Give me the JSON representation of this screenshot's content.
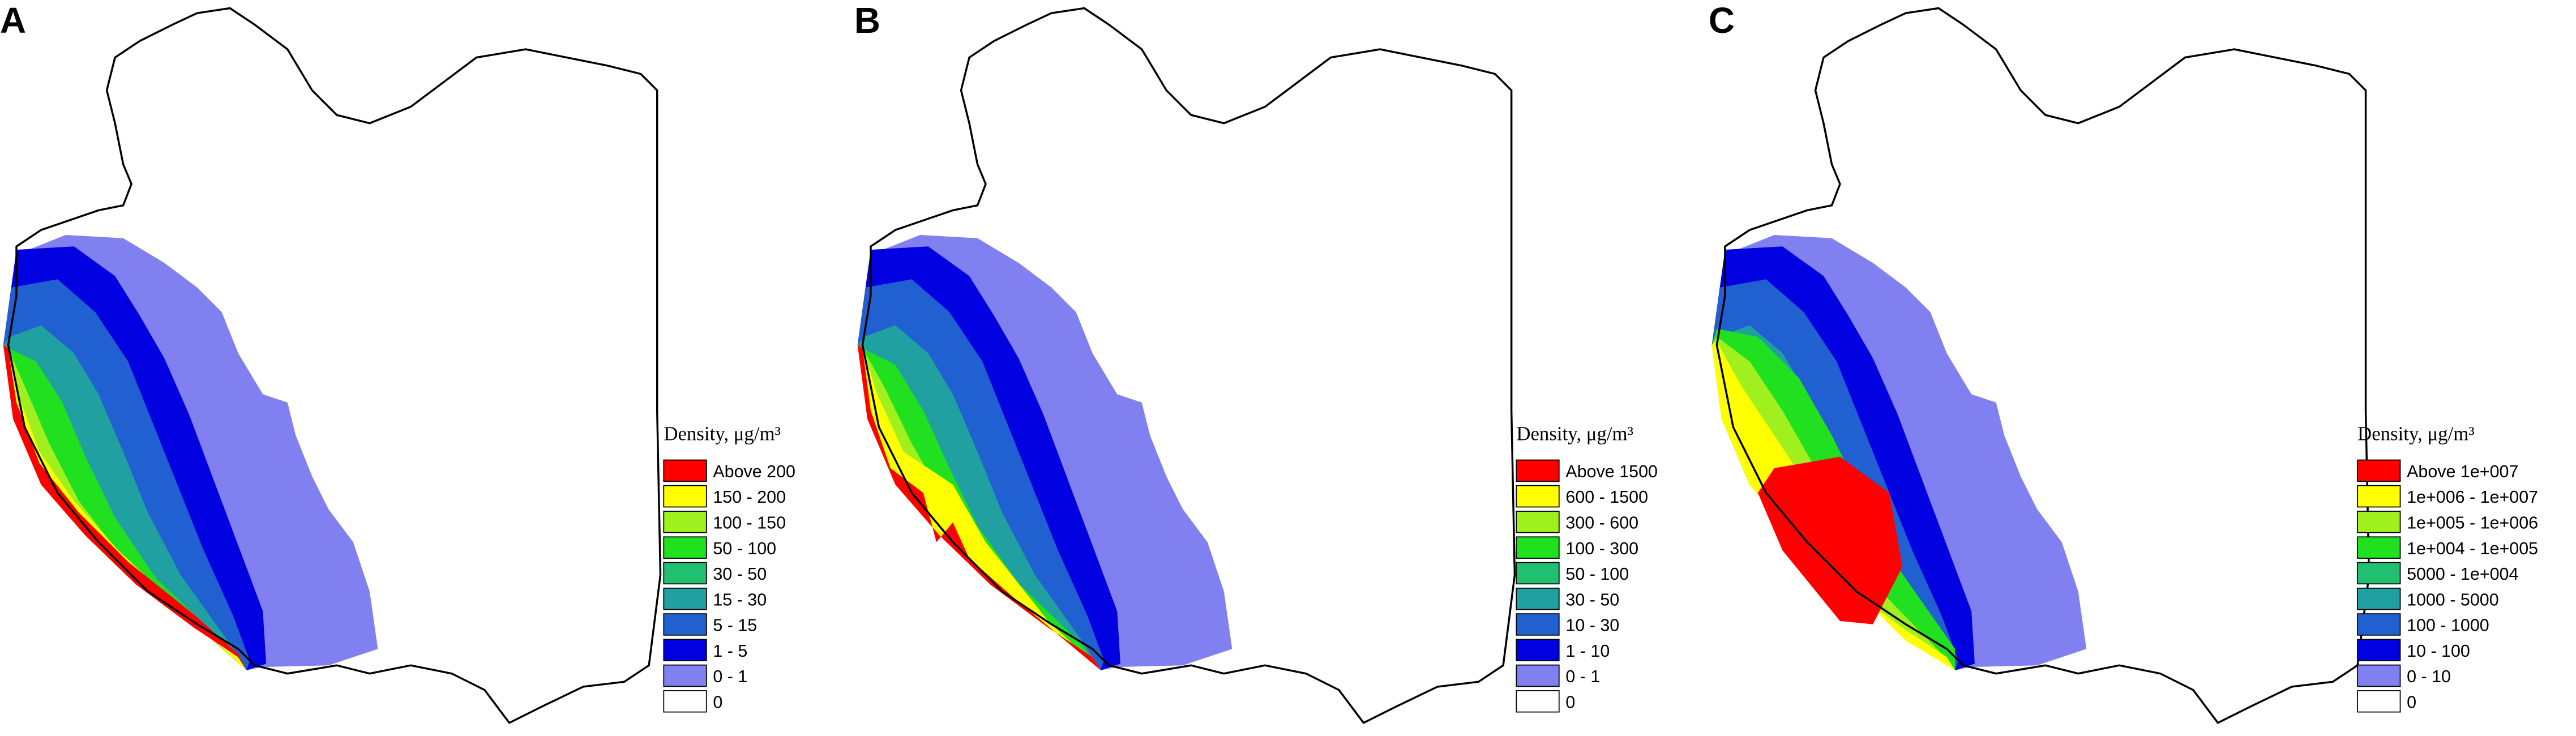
{
  "panels": [
    {
      "label": "A",
      "legend": {
        "title": "Density, μg/m³",
        "entries": [
          {
            "label": "Above  200",
            "color": "#ff0000"
          },
          {
            "label": "150 - 200",
            "color": "#ffff00"
          },
          {
            "label": "100 - 150",
            "color": "#a0f020"
          },
          {
            "label": "50 - 100",
            "color": "#20e020"
          },
          {
            "label": "30 -  50",
            "color": "#20c070"
          },
          {
            "label": "15 -  30",
            "color": "#20a0a0"
          },
          {
            "label": "5 -  15",
            "color": "#2060d0"
          },
          {
            "label": "1 -    5",
            "color": "#0000e0"
          },
          {
            "label": "0 -    1",
            "color": "#8080f0"
          },
          {
            "label": "0",
            "color": "#ffffff"
          }
        ]
      }
    },
    {
      "label": "B",
      "legend": {
        "title": "Density, μg/m³",
        "entries": [
          {
            "label": "Above  1500",
            "color": "#ff0000"
          },
          {
            "label": "600 - 1500",
            "color": "#ffff00"
          },
          {
            "label": "300 -  600",
            "color": "#a0f020"
          },
          {
            "label": "100 -  300",
            "color": "#20e020"
          },
          {
            "label": "50 -  100",
            "color": "#20c070"
          },
          {
            "label": "30 -    50",
            "color": "#20a0a0"
          },
          {
            "label": "10 -    30",
            "color": "#2060d0"
          },
          {
            "label": "1 -    10",
            "color": "#0000e0"
          },
          {
            "label": "0 -      1",
            "color": "#8080f0"
          },
          {
            "label": "0",
            "color": "#ffffff"
          }
        ]
      }
    },
    {
      "label": "C",
      "legend": {
        "title": "Density, μg/m³",
        "entries": [
          {
            "label": "Above  1e+007",
            "color": "#ff0000"
          },
          {
            "label": "1e+006 - 1e+007",
            "color": "#ffff00"
          },
          {
            "label": "1e+005 - 1e+006",
            "color": "#a0f020"
          },
          {
            "label": "1e+004 - 1e+005",
            "color": "#20e020"
          },
          {
            "label": "5000 - 1e+004",
            "color": "#20c070"
          },
          {
            "label": "1000 -   5000",
            "color": "#20a0a0"
          },
          {
            "label": "100 -   1000",
            "color": "#2060d0"
          },
          {
            "label": "10 -     100",
            "color": "#0000e0"
          },
          {
            "label": "0 -       10",
            "color": "#8080f0"
          },
          {
            "label": "0",
            "color": "#ffffff"
          }
        ]
      }
    }
  ]
}
